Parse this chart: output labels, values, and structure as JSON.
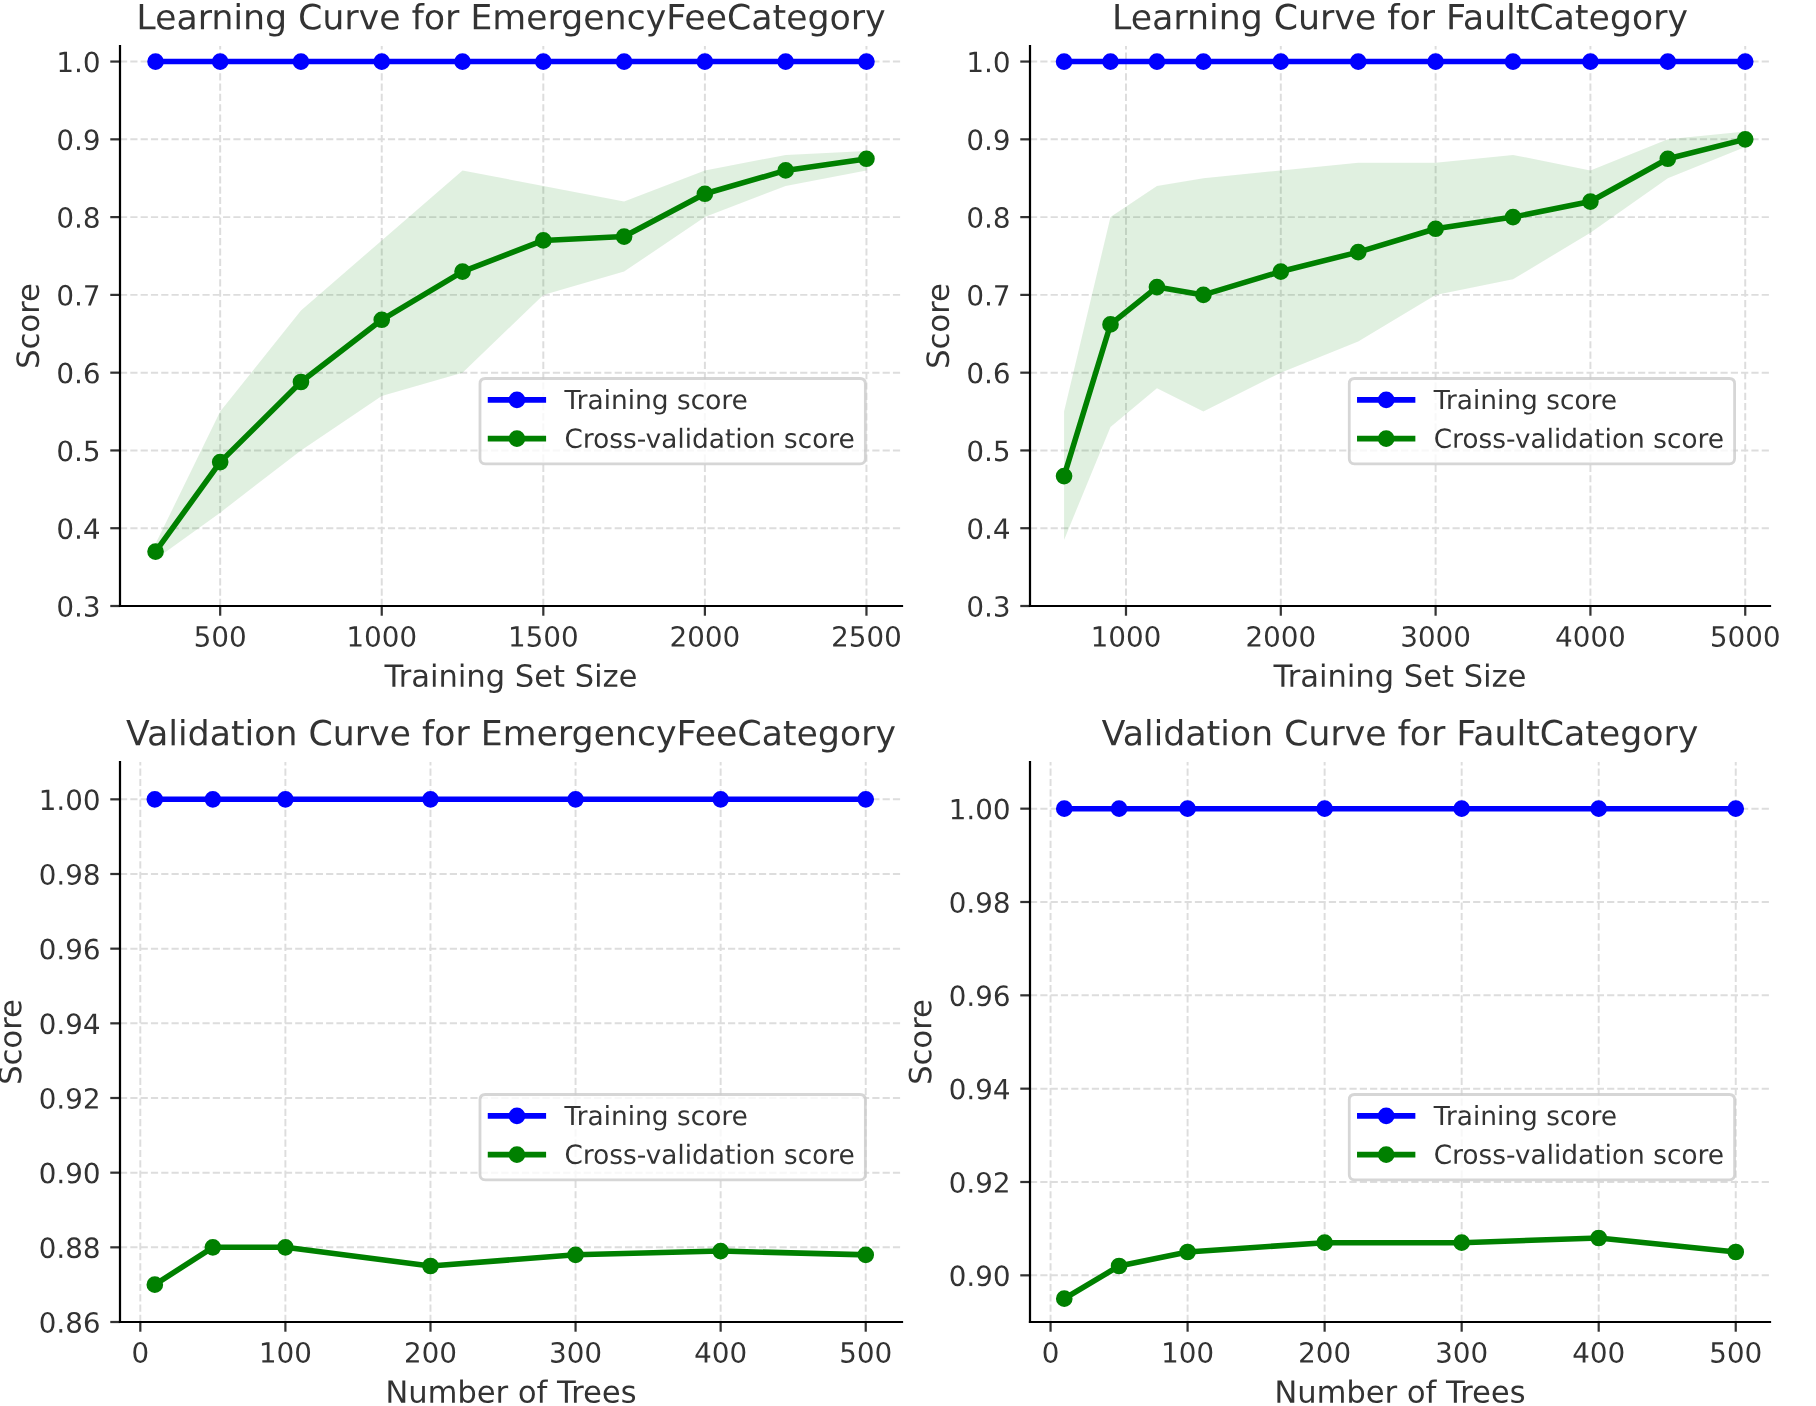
{
  "chart_data": [
    {
      "type": "line",
      "title": "Learning Curve for EmergencyFeeCategory",
      "xlabel": "Training Set Size",
      "ylabel": "Score",
      "xlim": [
        190,
        2610
      ],
      "xticks": [
        500,
        1000,
        1500,
        2000,
        2500
      ],
      "ylim": [
        0.3,
        1.02
      ],
      "yticks": [
        0.3,
        0.4,
        0.5,
        0.6,
        0.7,
        0.8,
        0.9,
        {
          "value": 1.0,
          "label": "1.0"
        }
      ],
      "grid": true,
      "legend": "center right",
      "marker": "circle",
      "line_style": "solid",
      "x": [
        300,
        500,
        750,
        1000,
        1250,
        1500,
        1750,
        2000,
        2250,
        2500
      ],
      "series": [
        {
          "name": "Training score",
          "color": "#0000ff",
          "values": [
            1.0,
            1.0,
            1.0,
            1.0,
            1.0,
            1.0,
            1.0,
            1.0,
            1.0,
            1.0
          ]
        },
        {
          "name": "Cross-validation score",
          "color": "#008000",
          "values": [
            0.37,
            0.485,
            0.588,
            0.668,
            0.73,
            0.77,
            0.775,
            0.83,
            0.86,
            0.875
          ],
          "lower": [
            0.36,
            0.42,
            0.5,
            0.57,
            0.6,
            0.7,
            0.73,
            0.8,
            0.84,
            0.86
          ],
          "upper": [
            0.38,
            0.55,
            0.68,
            0.77,
            0.86,
            0.84,
            0.82,
            0.86,
            0.88,
            0.885
          ]
        }
      ]
    },
    {
      "type": "line",
      "title": "Learning Curve for FaultCategory",
      "xlabel": "Training Set Size",
      "ylabel": "Score",
      "xlim": [
        380,
        5160
      ],
      "xticks": [
        1000,
        2000,
        3000,
        4000,
        5000
      ],
      "ylim": [
        0.3,
        1.02
      ],
      "yticks": [
        0.3,
        0.4,
        0.5,
        0.6,
        0.7,
        0.8,
        0.9,
        {
          "value": 1.0,
          "label": "1.0"
        }
      ],
      "grid": true,
      "legend": "center right",
      "marker": "circle",
      "line_style": "solid",
      "x": [
        600,
        900,
        1200,
        1500,
        2000,
        2500,
        3000,
        3500,
        4000,
        4500,
        5000
      ],
      "series": [
        {
          "name": "Training score",
          "color": "#0000ff",
          "values": [
            1.0,
            1.0,
            1.0,
            1.0,
            1.0,
            1.0,
            1.0,
            1.0,
            1.0,
            1.0,
            1.0
          ]
        },
        {
          "name": "Cross-validation score",
          "color": "#008000",
          "values": [
            0.467,
            0.662,
            0.71,
            0.7,
            0.73,
            0.755,
            0.785,
            0.8,
            0.82,
            0.875,
            0.9
          ],
          "lower": [
            0.385,
            0.53,
            0.58,
            0.55,
            0.6,
            0.64,
            0.7,
            0.72,
            0.78,
            0.85,
            0.89
          ],
          "upper": [
            0.55,
            0.8,
            0.84,
            0.85,
            0.86,
            0.87,
            0.87,
            0.88,
            0.86,
            0.9,
            0.91
          ]
        }
      ]
    },
    {
      "type": "line",
      "title": "Validation Curve for EmergencyFeeCategory",
      "xlabel": "Number of Trees",
      "ylabel": "Score",
      "xlim": [
        -14,
        525
      ],
      "xticks": [
        0,
        100,
        200,
        300,
        400,
        500
      ],
      "ylim": [
        0.86,
        1.01
      ],
      "yticks": [
        {
          "value": 0.86,
          "label": "0.86"
        },
        {
          "value": 0.88,
          "label": "0.88"
        },
        {
          "value": 0.9,
          "label": "0.90"
        },
        {
          "value": 0.92,
          "label": "0.92"
        },
        {
          "value": 0.94,
          "label": "0.94"
        },
        {
          "value": 0.96,
          "label": "0.96"
        },
        {
          "value": 0.98,
          "label": "0.98"
        },
        {
          "value": 1.0,
          "label": "1.00"
        }
      ],
      "grid": true,
      "legend": "center right",
      "marker": "circle",
      "line_style": "solid",
      "x": [
        10,
        50,
        100,
        200,
        300,
        400,
        500
      ],
      "series": [
        {
          "name": "Training score",
          "color": "#0000ff",
          "values": [
            1.0,
            1.0,
            1.0,
            1.0,
            1.0,
            1.0,
            1.0
          ]
        },
        {
          "name": "Cross-validation score",
          "color": "#008000",
          "values": [
            0.87,
            0.88,
            0.88,
            0.875,
            0.878,
            0.879,
            0.878
          ]
        }
      ]
    },
    {
      "type": "line",
      "title": "Validation Curve for FaultCategory",
      "xlabel": "Number of Trees",
      "ylabel": "Score",
      "xlim": [
        -15,
        525
      ],
      "xticks": [
        0,
        100,
        200,
        300,
        400,
        500
      ],
      "ylim": [
        0.89,
        1.01
      ],
      "yticks": [
        {
          "value": 0.9,
          "label": "0.90"
        },
        {
          "value": 0.92,
          "label": "0.92"
        },
        {
          "value": 0.94,
          "label": "0.94"
        },
        {
          "value": 0.96,
          "label": "0.96"
        },
        {
          "value": 0.98,
          "label": "0.98"
        },
        {
          "value": 1.0,
          "label": "1.00"
        }
      ],
      "grid": true,
      "legend": "center right",
      "marker": "circle",
      "line_style": "solid",
      "x": [
        10,
        50,
        100,
        200,
        300,
        400,
        500
      ],
      "series": [
        {
          "name": "Training score",
          "color": "#0000ff",
          "values": [
            1.0,
            1.0,
            1.0,
            1.0,
            1.0,
            1.0,
            1.0
          ]
        },
        {
          "name": "Cross-validation score",
          "color": "#008000",
          "values": [
            0.895,
            0.902,
            0.905,
            0.907,
            0.907,
            0.908,
            0.905
          ]
        }
      ]
    }
  ]
}
